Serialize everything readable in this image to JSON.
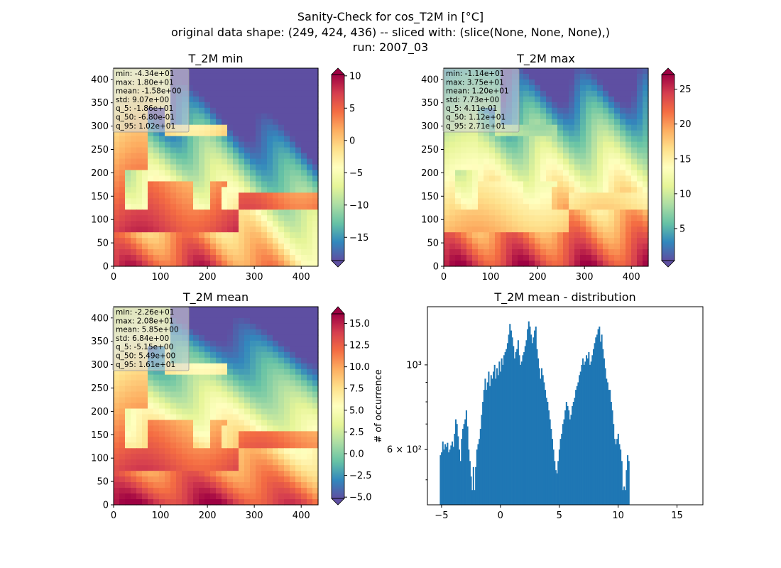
{
  "figure": {
    "suptitle_lines": [
      "Sanity-Check for cos_T2M in [°C]",
      "original data shape: (249, 424, 436) -- sliced with: (slice(None, None, None),)",
      "run: 2007_03"
    ]
  },
  "colors": {
    "cmap": [
      "#9e0142",
      "#d53e4f",
      "#f46d43",
      "#fdae61",
      "#fee08b",
      "#ffffbf",
      "#e6f598",
      "#abdda4",
      "#66c2a5",
      "#3288bd",
      "#5e4fa2"
    ],
    "hist_bar": "#1f77b4",
    "stats_box": "#d9d9d9"
  },
  "chart_data": [
    {
      "type": "heatmap",
      "title": "T_2M min",
      "xlim": [
        0,
        436
      ],
      "ylim": [
        0,
        424
      ],
      "x_ticks": [
        0,
        100,
        200,
        300,
        400
      ],
      "y_ticks": [
        0,
        50,
        100,
        150,
        200,
        250,
        300,
        350,
        400
      ],
      "colorbar": {
        "range": [
          -18.6,
          10.2
        ],
        "ticks": [
          10,
          5,
          0,
          -5,
          -10,
          -15
        ],
        "tick_labels": [
          "10",
          "5",
          "0",
          "−5",
          "−10",
          "−15"
        ],
        "extend": "both"
      },
      "stats": [
        "min: -4.34e+01",
        "max: 1.80e+01",
        "mean: -1.58e+00",
        "std: 9.07e+00",
        "q_5: -1.86e+01",
        "q_50: -6.80e-01",
        "q_95: 1.02e+01"
      ]
    },
    {
      "type": "heatmap",
      "title": "T_2M max",
      "xlim": [
        0,
        436
      ],
      "ylim": [
        0,
        424
      ],
      "x_ticks": [
        0,
        100,
        200,
        300,
        400
      ],
      "y_ticks": [
        0,
        50,
        100,
        150,
        200,
        250,
        300,
        350,
        400
      ],
      "colorbar": {
        "range": [
          0.41,
          27.1
        ],
        "ticks": [
          25,
          20,
          15,
          10,
          5
        ],
        "tick_labels": [
          "25",
          "20",
          "15",
          "10",
          "5"
        ],
        "extend": "both"
      },
      "stats": [
        "min: -1.14e+01",
        "max: 3.75e+01",
        "mean: 1.20e+01",
        "std: 7.73e+00",
        "q_5: 4.11e-01",
        "q_50: 1.12e+01",
        "q_95: 2.71e+01"
      ]
    },
    {
      "type": "heatmap",
      "title": "T_2M mean",
      "xlim": [
        0,
        436
      ],
      "ylim": [
        0,
        424
      ],
      "x_ticks": [
        0,
        100,
        200,
        300,
        400
      ],
      "y_ticks": [
        0,
        50,
        100,
        150,
        200,
        250,
        300,
        350,
        400
      ],
      "colorbar": {
        "range": [
          -5.15,
          16.1
        ],
        "ticks": [
          15.0,
          12.5,
          10.0,
          7.5,
          5.0,
          2.5,
          0.0,
          -2.5,
          -5.0
        ],
        "tick_labels": [
          "15.0",
          "12.5",
          "10.0",
          "7.5",
          "5.0",
          "2.5",
          "0.0",
          "−2.5",
          "−5.0"
        ],
        "extend": "both"
      },
      "stats": [
        "min: -2.26e+01",
        "max: 2.08e+01",
        "mean: 5.85e+00",
        "std: 6.84e+00",
        "q_5: -5.15e+00",
        "q_50: 5.49e+00",
        "q_95: 1.61e+01"
      ]
    },
    {
      "type": "bar",
      "title": "T_2M mean - distribution",
      "ylabel": "# of occurrence",
      "y_scale": "log",
      "xlim": [
        -6.2,
        17.2
      ],
      "ylim": [
        430,
        1420
      ],
      "x_ticks": [
        -5,
        0,
        5,
        10,
        15
      ],
      "x_tick_labels": [
        "−5",
        "0",
        "5",
        "10",
        "15"
      ],
      "y_major_ticks": [
        600,
        1000
      ],
      "y_tick_labels": [
        "6 × 10²",
        "10³"
      ],
      "y_minor_ticks": [
        500,
        700,
        800,
        900
      ],
      "bin_start": -5.15,
      "bin_width": 0.1,
      "values": [
        580,
        590,
        630,
        600,
        620,
        610,
        625,
        590,
        600,
        615,
        630,
        610,
        660,
        720,
        700,
        650,
        600,
        560,
        640,
        680,
        700,
        720,
        760,
        690,
        600,
        560,
        510,
        470,
        540,
        470,
        540,
        600,
        620,
        640,
        680,
        740,
        800,
        860,
        920,
        860,
        900,
        960,
        880,
        940,
        920,
        960,
        1000,
        920,
        980,
        940,
        1020,
        960,
        1040,
        1000,
        1060,
        1080,
        1100,
        1140,
        1200,
        1280,
        1230,
        1180,
        1120,
        1040,
        1080,
        1100,
        1160,
        1060,
        1000,
        1020,
        1060,
        1080,
        1120,
        1160,
        1240,
        1300,
        1260,
        1200,
        1140,
        1180,
        1230,
        1260,
        1100,
        1040,
        980,
        920,
        980,
        940,
        900,
        860,
        820,
        800,
        760,
        720,
        680,
        640,
        600,
        560,
        530,
        520,
        560,
        600,
        640,
        660,
        700,
        720,
        760,
        800,
        780,
        760,
        720,
        740,
        780,
        800,
        820,
        860,
        880,
        900,
        940,
        960,
        1000,
        1040,
        1000,
        1020,
        1060,
        1040,
        1080,
        1000,
        1020,
        1060,
        1100,
        1140,
        1180,
        1200,
        1240,
        1260,
        1150,
        1200,
        1100,
        1040,
        980,
        920,
        900,
        860,
        860,
        800,
        760,
        700,
        640,
        620,
        640,
        660,
        620,
        600,
        560,
        470,
        480,
        470,
        530,
        580,
        560
      ]
    }
  ]
}
